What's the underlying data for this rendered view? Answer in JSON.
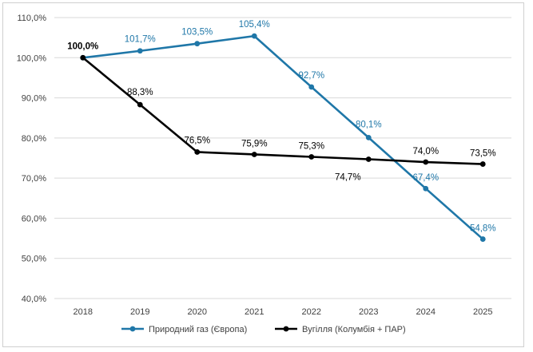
{
  "chart_data": {
    "type": "line",
    "categories": [
      "2018",
      "2019",
      "2020",
      "2021",
      "2022",
      "2023",
      "2024",
      "2025"
    ],
    "ylim": [
      40,
      110
    ],
    "yticks": [
      "40,0%",
      "50,0%",
      "60,0%",
      "70,0%",
      "80,0%",
      "90,0%",
      "100,0%",
      "110,0%"
    ],
    "grid": "horizontal",
    "legend_position": "bottom",
    "series": [
      {
        "name": "Природний газ (Європа)",
        "color": "#1f77a8",
        "values": [
          100.0,
          101.7,
          103.5,
          105.4,
          92.7,
          80.1,
          67.4,
          54.8
        ],
        "labels": [
          "",
          "101,7%",
          "103,5%",
          "105,4%",
          "92,7%",
          "80,1%",
          "67,4%",
          "54,8%"
        ]
      },
      {
        "name": "Вугілля (Колумбія + ПАР)",
        "color": "#000000",
        "values": [
          100.0,
          88.3,
          76.5,
          75.9,
          75.3,
          74.7,
          74.0,
          73.5
        ],
        "labels": [
          "100,0%",
          "88,3%",
          "76,5%",
          "75,9%",
          "75,3%",
          "74,7%",
          "74,0%",
          "73,5%"
        ]
      }
    ]
  }
}
